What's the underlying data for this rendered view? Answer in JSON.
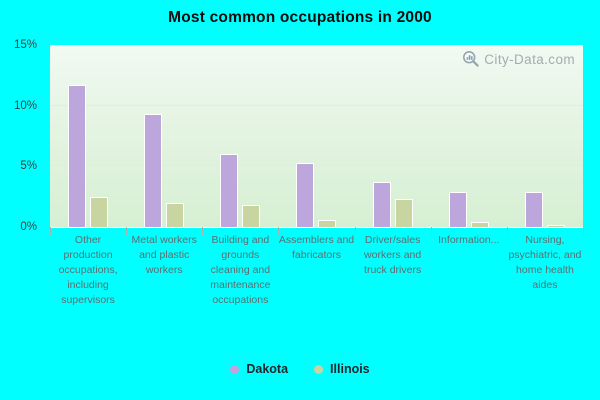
{
  "title": "Most common occupations in 2000",
  "watermark": {
    "text": "City-Data.com",
    "icon": "magnifier-chart-icon"
  },
  "colors": {
    "background": "#00ffff",
    "dakota": "#bca6db",
    "illinois": "#c8d5a0",
    "plot_gradient_top": "#f1faf2",
    "plot_gradient_bottom": "#d6efd3",
    "gridline": "#ece2f0",
    "y_label": "#3f3f3f",
    "category_label": "#5e6e6e",
    "watermark_text": "#a6abb2"
  },
  "y_axis": {
    "tick_labels": [
      "0%",
      "5%",
      "10%",
      "15%"
    ],
    "min": 0,
    "max": 15
  },
  "legend": [
    {
      "label": "Dakota",
      "color": "#bca6db"
    },
    {
      "label": "Illinois",
      "color": "#c8d5a0"
    }
  ],
  "chart_data": {
    "type": "bar",
    "title": "Most common occupations in 2000",
    "categories": [
      "Other production occupations, including supervisors",
      "Metal workers and plastic workers",
      "Building and grounds cleaning and maintenance occupations",
      "Assemblers and fabricators",
      "Driver/sales workers and truck drivers",
      "Information...",
      "Nursing, psychiatric, and home health aides"
    ],
    "series": [
      {
        "name": "Dakota",
        "color": "#bca6db",
        "values": [
          11.7,
          9.3,
          6.0,
          5.3,
          3.7,
          2.9,
          2.9
        ]
      },
      {
        "name": "Illinois",
        "color": "#c8d5a0",
        "values": [
          2.5,
          2.0,
          1.8,
          0.6,
          2.3,
          0.4,
          0.2
        ]
      }
    ],
    "ylabel": "",
    "xlabel": "",
    "ylim": [
      0,
      15
    ],
    "grid": "horizontal",
    "gridline_values": [
      5,
      10
    ],
    "legend_position": "bottom"
  }
}
